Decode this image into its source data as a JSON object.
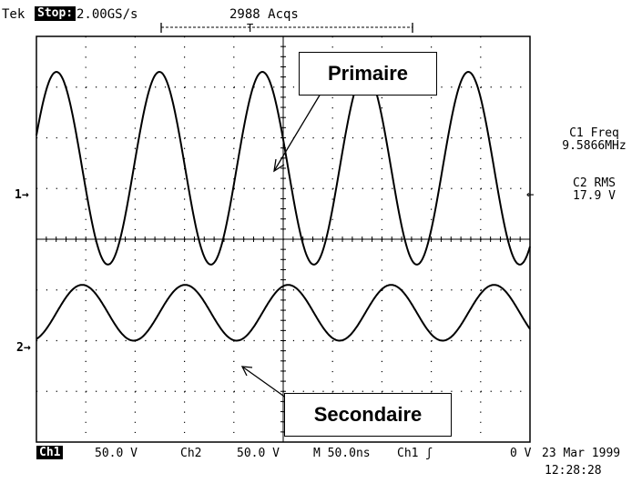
{
  "header": {
    "brand": "Tek",
    "status": "Stop:",
    "sample_rate": "2.00GS/s",
    "acquisitions": "2988 Acqs",
    "trigger_mark": "T"
  },
  "channel_markers": {
    "ch1": "1→",
    "ch2": "2→",
    "trigger_level_marker": "←"
  },
  "measurements": {
    "c1_freq_label": "C1 Freq",
    "c1_freq_value": "9.5866MHz",
    "c2_rms_label": "C2 RMS",
    "c2_rms_value": "17.9 V"
  },
  "annotations": {
    "primary": "Primaire",
    "secondary": "Secondaire"
  },
  "footer": {
    "ch1_label": "Ch1",
    "ch1_scale": "50.0 V",
    "ch2_label": "Ch2",
    "ch2_scale": "50.0 V",
    "timebase": "M 50.0ns",
    "trigger_source": "Ch1 ʃ",
    "trigger_level": "0 V",
    "date": "23 Mar 1999",
    "time": "12:28:28"
  },
  "chart_data": {
    "type": "line",
    "grid": true,
    "divisions": {
      "x": 10,
      "y": 8
    },
    "series": [
      {
        "frequency_hz": 9586600,
        "amplitude_divisions": 1.9,
        "offset_divisions": 1.4,
        "phase_deg": 0
      },
      {
        "amplitude_divisions": 0.55,
        "offset_divisions": -1.45,
        "phase_deg": 90
      }
    ]
  }
}
